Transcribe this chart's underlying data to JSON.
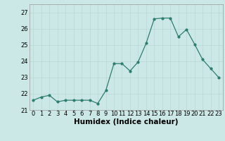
{
  "x": [
    0,
    1,
    2,
    3,
    4,
    5,
    6,
    7,
    8,
    9,
    10,
    11,
    12,
    13,
    14,
    15,
    16,
    17,
    18,
    19,
    20,
    21,
    22,
    23
  ],
  "y": [
    21.6,
    21.8,
    21.9,
    21.5,
    21.6,
    21.6,
    21.6,
    21.6,
    21.4,
    22.2,
    23.85,
    23.85,
    23.4,
    23.95,
    25.1,
    26.6,
    26.65,
    26.65,
    25.5,
    25.95,
    25.05,
    24.1,
    23.55,
    23.0
  ],
  "title": "",
  "xlabel": "Humidex (Indice chaleur)",
  "ylabel": "",
  "ylim": [
    21,
    27.5
  ],
  "xlim": [
    -0.5,
    23.5
  ],
  "yticks": [
    21,
    22,
    23,
    24,
    25,
    26,
    27
  ],
  "xticks": [
    0,
    1,
    2,
    3,
    4,
    5,
    6,
    7,
    8,
    9,
    10,
    11,
    12,
    13,
    14,
    15,
    16,
    17,
    18,
    19,
    20,
    21,
    22,
    23
  ],
  "line_color": "#2e7d6e",
  "bg_color": "#cce8e6",
  "grid_color": "#b8d8d6",
  "tick_fontsize": 6,
  "label_fontsize": 7.5
}
